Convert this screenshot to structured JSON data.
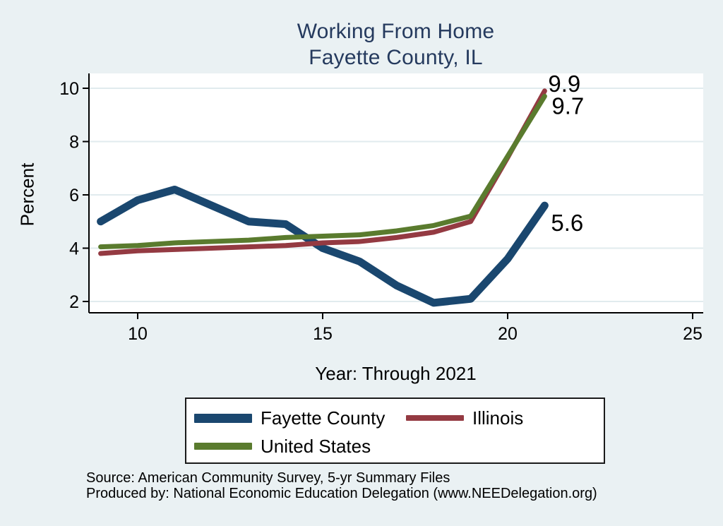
{
  "title": {
    "line1": "Working From Home",
    "line2": "Fayette County, IL"
  },
  "chart_data": {
    "type": "line",
    "title": "Working From Home — Fayette County, IL",
    "xlabel": "Year: Through 2021",
    "ylabel": "Percent",
    "x_years": [
      9,
      10,
      11,
      12,
      13,
      14,
      15,
      16,
      17,
      18,
      19,
      20,
      21
    ],
    "series": [
      {
        "name": "Fayette County",
        "color": "#1a476f",
        "values": [
          5.0,
          5.8,
          6.2,
          5.6,
          5.0,
          4.9,
          4.0,
          3.5,
          2.6,
          1.95,
          2.1,
          3.6,
          5.6
        ],
        "end_label": "5.6"
      },
      {
        "name": "Illinois",
        "color": "#943a42",
        "values": [
          3.8,
          3.9,
          3.95,
          4.0,
          4.05,
          4.1,
          4.2,
          4.25,
          4.4,
          4.6,
          5.0,
          7.4,
          9.9
        ],
        "end_label": "9.9"
      },
      {
        "name": "United States",
        "color": "#5a7b2e",
        "values": [
          4.05,
          4.1,
          4.2,
          4.25,
          4.3,
          4.4,
          4.45,
          4.5,
          4.65,
          4.85,
          5.2,
          7.45,
          9.7
        ],
        "end_label": "9.7"
      }
    ],
    "xticks": [
      "10",
      "15",
      "20",
      "25"
    ],
    "yticks": [
      "2",
      "4",
      "6",
      "8",
      "10"
    ],
    "xlim": [
      8.68,
      25.3
    ],
    "ylim": [
      1.58,
      10.56
    ],
    "grid": "horizontal",
    "legend_position": "bottom-center",
    "plot_background": "#ffffff",
    "page_background": "#eaf1f3",
    "gridline_color": "#e1ebee",
    "title_color": "#253a5e"
  },
  "footer": {
    "line1": "Source: American Community Survey, 5-yr Summary Files",
    "line2": "Produced by: National Economic Education Delegation (www.NEEDelegation.org)"
  }
}
